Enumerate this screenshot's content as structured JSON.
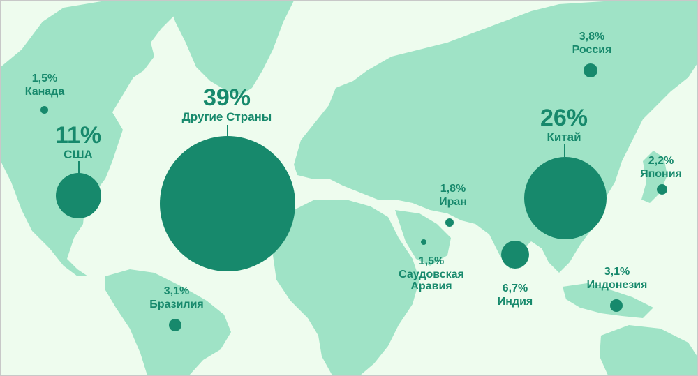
{
  "map": {
    "colors": {
      "background": "#eefcee",
      "land": "#9fe3c6",
      "marker": "#17896c"
    },
    "regions": [
      {
        "id": "other",
        "percent": "39%",
        "name": "Другие Страны",
        "value": 39,
        "size": "large"
      },
      {
        "id": "china",
        "percent": "26%",
        "name": "Китай",
        "value": 26,
        "size": "large"
      },
      {
        "id": "usa",
        "percent": "11%",
        "name": "США",
        "value": 11,
        "size": "large"
      },
      {
        "id": "india",
        "percent": "6,7%",
        "name": "Индия",
        "value": 6.7,
        "size": "small"
      },
      {
        "id": "russia",
        "percent": "3,8%",
        "name": "Россия",
        "value": 3.8,
        "size": "small"
      },
      {
        "id": "brazil",
        "percent": "3,1%",
        "name": "Бразилия",
        "value": 3.1,
        "size": "small"
      },
      {
        "id": "indonesia",
        "percent": "3,1%",
        "name": "Индонезия",
        "value": 3.1,
        "size": "small"
      },
      {
        "id": "japan",
        "percent": "2,2%",
        "name": "Япония",
        "value": 2.2,
        "size": "small"
      },
      {
        "id": "iran",
        "percent": "1,8%",
        "name": "Иран",
        "value": 1.8,
        "size": "small"
      },
      {
        "id": "canada",
        "percent": "1,5%",
        "name": "Канада",
        "value": 1.5,
        "size": "small"
      },
      {
        "id": "saudi",
        "percent": "1,5%",
        "name": "Саудовская\nАравия",
        "value": 1.5,
        "size": "small"
      }
    ]
  }
}
